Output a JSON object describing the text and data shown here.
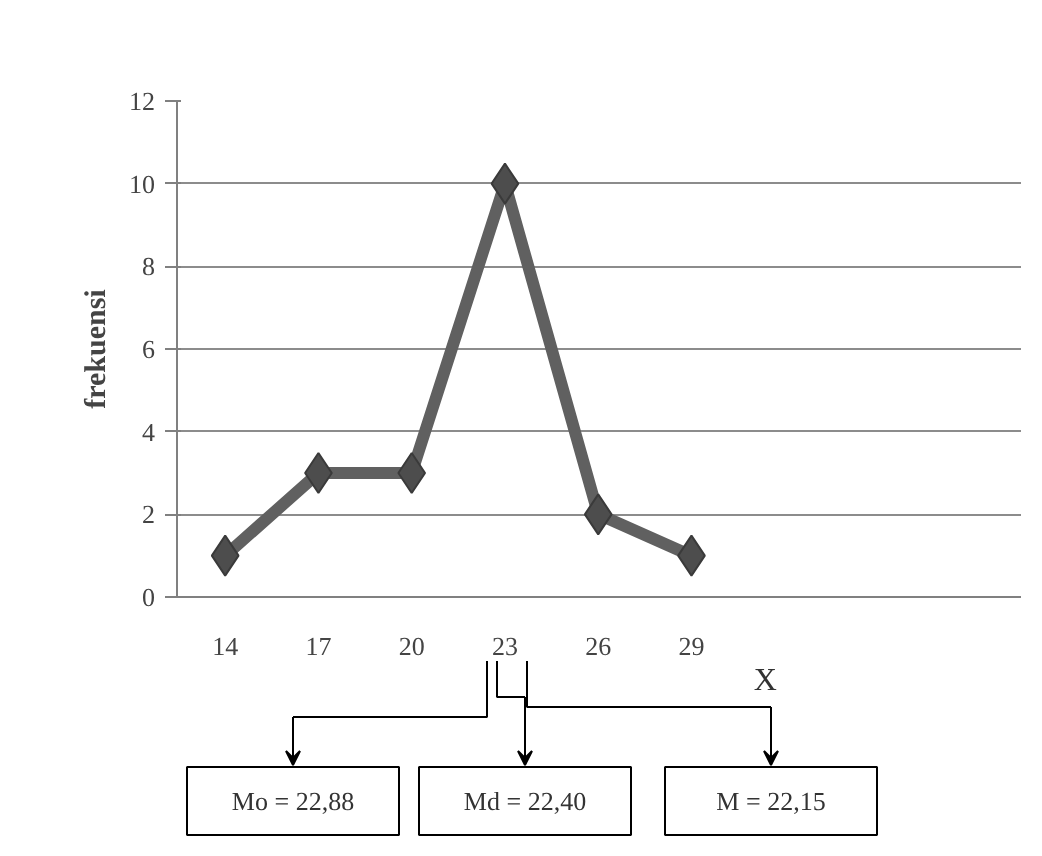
{
  "chart_data": {
    "type": "line",
    "xlabel": "X",
    "ylabel": "frekuensi",
    "x": [
      14,
      17,
      20,
      23,
      26,
      29
    ],
    "series": [
      {
        "color": "#606060",
        "values": [
          1,
          3,
          3,
          10,
          2,
          1
        ]
      }
    ],
    "xlim": [
      12.45,
      39.6
    ],
    "xticks": [
      14,
      17,
      20,
      23,
      26,
      29
    ],
    "ylim": [
      0,
      12
    ],
    "yticks": [
      0,
      2,
      4,
      6,
      8,
      10,
      12
    ],
    "grid": "y",
    "marker": "diamond",
    "line_style": "solid",
    "annotations": [
      "Mo = 22,88",
      "Md = 22,40",
      "M = 22,15"
    ]
  }
}
